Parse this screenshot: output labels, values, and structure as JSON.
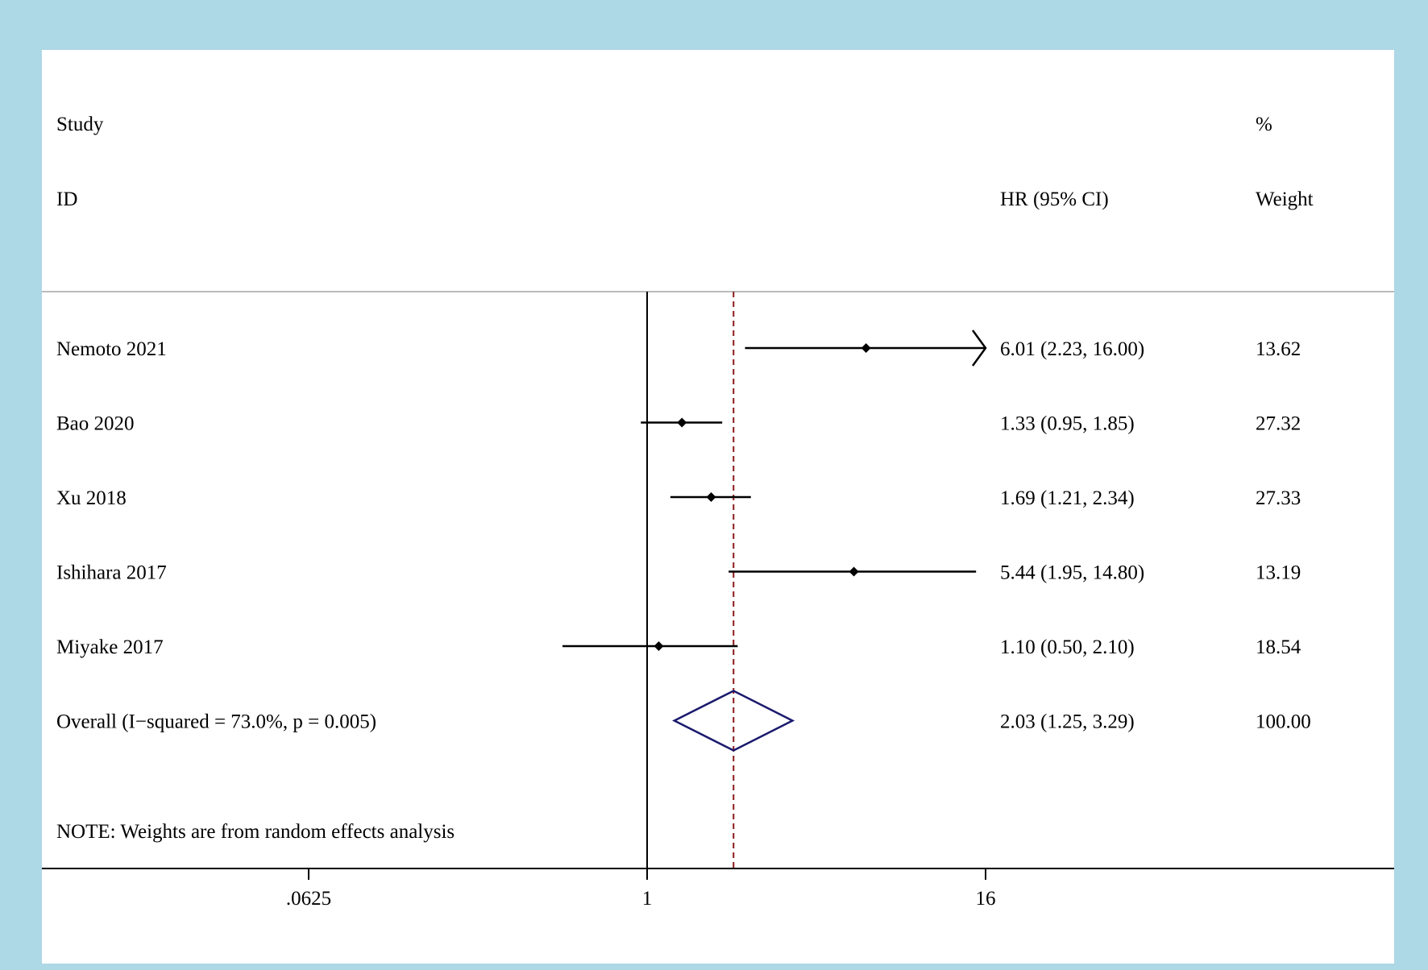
{
  "chart_data": {
    "type": "forest",
    "x_scale": "log",
    "x_ticks": [
      {
        "value": 0.0625,
        "label": ".0625"
      },
      {
        "value": 1,
        "label": "1"
      },
      {
        "value": 16,
        "label": "16"
      }
    ],
    "reference_line": 1,
    "overall_line": 2.03,
    "headers": {
      "study_line1": "Study",
      "study_line2": "ID",
      "hr": "HR (95% CI)",
      "weight_line1": "%",
      "weight_line2": "Weight"
    },
    "studies": [
      {
        "id": "Nemoto 2021",
        "hr": 6.01,
        "lo": 2.23,
        "hi": 16.0,
        "hr_text": "6.01 (2.23, 16.00)",
        "weight": 13.62,
        "weight_text": "13.62",
        "truncated_high": true
      },
      {
        "id": "Bao 2020",
        "hr": 1.33,
        "lo": 0.95,
        "hi": 1.85,
        "hr_text": "1.33 (0.95, 1.85)",
        "weight": 27.32,
        "weight_text": "27.32"
      },
      {
        "id": "Xu 2018",
        "hr": 1.69,
        "lo": 1.21,
        "hi": 2.34,
        "hr_text": "1.69 (1.21, 2.34)",
        "weight": 27.33,
        "weight_text": "27.33"
      },
      {
        "id": "Ishihara 2017",
        "hr": 5.44,
        "lo": 1.95,
        "hi": 14.8,
        "hr_text": "5.44 (1.95, 14.80)",
        "weight": 13.19,
        "weight_text": "13.19"
      },
      {
        "id": "Miyake 2017",
        "hr": 1.1,
        "lo": 0.5,
        "hi": 2.1,
        "hr_text": "1.10 (0.50, 2.10)",
        "weight": 18.54,
        "weight_text": "18.54"
      }
    ],
    "overall": {
      "label": "Overall  (I−squared = 73.0%, p = 0.005)",
      "hr": 2.03,
      "lo": 1.25,
      "hi": 3.29,
      "hr_text": "2.03 (1.25, 3.29)",
      "weight_text": "100.00"
    },
    "note": "NOTE: Weights are from random effects analysis",
    "colors": {
      "background": "#add8e6",
      "panel": "#ffffff",
      "overall_diamond": "#1a1a6e",
      "overall_line": "#8b1a1a",
      "separator": "#bbbbbb"
    }
  }
}
